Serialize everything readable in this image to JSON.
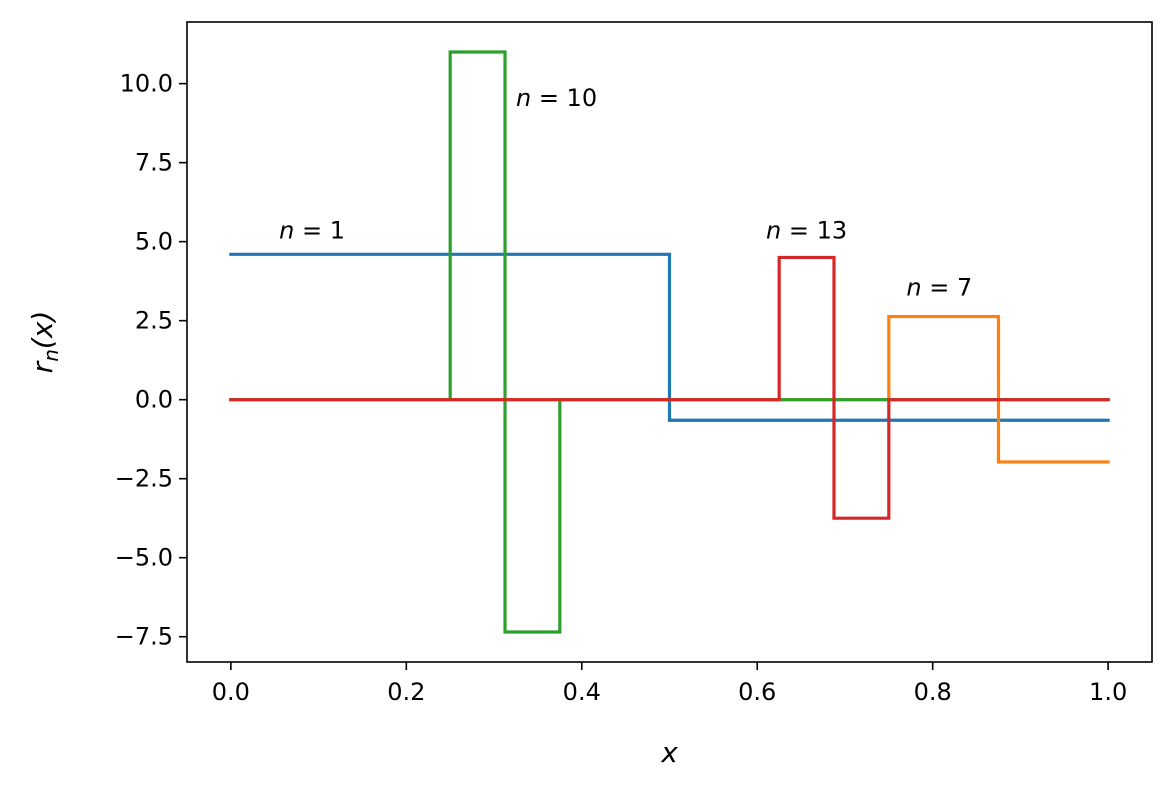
{
  "chart_data": {
    "type": "line",
    "xlabel": "x",
    "ylabel": "r_n(x)",
    "xlim": [
      -0.05,
      1.05
    ],
    "ylim": [
      -8.3,
      11.95
    ],
    "grid": false,
    "x_ticks": [
      0.0,
      0.2,
      0.4,
      0.6,
      0.8,
      1.0
    ],
    "x_tick_labels": [
      "0.0",
      "0.2",
      "0.4",
      "0.6",
      "0.8",
      "1.0"
    ],
    "y_ticks": [
      -7.5,
      -5.0,
      -2.5,
      0.0,
      2.5,
      5.0,
      7.5,
      10.0
    ],
    "y_tick_labels": [
      "−7.5",
      "−5.0",
      "−2.5",
      "0.0",
      "2.5",
      "5.0",
      "7.5",
      "10.0"
    ],
    "series": [
      {
        "color": "#1f77b4",
        "x": [
          0.0,
          0.5,
          0.5,
          1.0
        ],
        "y": [
          4.6,
          4.6,
          -0.65,
          -0.65
        ]
      },
      {
        "color": "#ff7f0e",
        "x": [
          0.0,
          0.75,
          0.75,
          0.875,
          0.875,
          1.0
        ],
        "y": [
          0.0,
          0.0,
          2.63,
          2.63,
          -1.97,
          -1.97
        ]
      },
      {
        "color": "#2ca02c",
        "x": [
          0.0,
          0.25,
          0.25,
          0.3125,
          0.3125,
          0.375,
          0.375,
          1.0
        ],
        "y": [
          0.0,
          0.0,
          11.0,
          11.0,
          -7.35,
          -7.35,
          0.0,
          0.0
        ]
      },
      {
        "color": "#d62728",
        "x": [
          0.0,
          0.625,
          0.625,
          0.6875,
          0.6875,
          0.75,
          0.75,
          1.0
        ],
        "y": [
          0.0,
          0.0,
          4.5,
          4.5,
          -3.75,
          -3.75,
          0.0,
          0.0
        ]
      }
    ],
    "annotations": [
      {
        "text": "n = 1",
        "x": 0.055,
        "y": 5.1
      },
      {
        "text": "n = 10",
        "x": 0.325,
        "y": 9.3
      },
      {
        "text": "n = 13",
        "x": 0.61,
        "y": 5.1
      },
      {
        "text": "n = 7",
        "x": 0.77,
        "y": 3.3
      }
    ]
  }
}
